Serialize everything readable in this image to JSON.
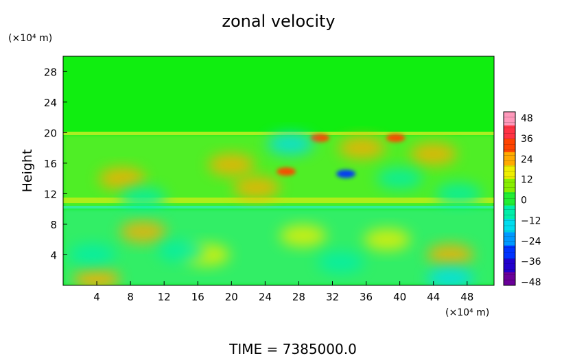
{
  "chart_data": {
    "type": "heatmap",
    "title": "zonal velocity",
    "ylabel": "Height",
    "yunit": "(×10⁴ m)",
    "xunit": "(×10⁴ m)",
    "footer": "TIME  =  7385000.0",
    "xlim": [
      0,
      51.2
    ],
    "ylim": [
      0,
      30
    ],
    "x_ticks": [
      "4",
      "8",
      "12",
      "16",
      "20",
      "24",
      "28",
      "32",
      "36",
      "40",
      "44",
      "48"
    ],
    "y_ticks": [
      "4",
      "8",
      "12",
      "16",
      "20",
      "24",
      "28"
    ],
    "colorbar": {
      "vmin": -48,
      "vmax": 48,
      "tick_labels": [
        "48",
        "36",
        "24",
        "12",
        "0",
        "−12",
        "−24",
        "−36",
        "−48"
      ],
      "colors": [
        "#6a0099",
        "#2200cc",
        "#0033ff",
        "#0099ff",
        "#00ddee",
        "#00eeaa",
        "#22ee33",
        "#88ee00",
        "#eeee00",
        "#ffaa00",
        "#ff4400",
        "#ff3344",
        "#ff99bb"
      ]
    },
    "features": [
      {
        "x": 26.5,
        "y": 14.9,
        "value": 34
      },
      {
        "x": 30.5,
        "y": 19.3,
        "value": 34
      },
      {
        "x": 39.5,
        "y": 19.3,
        "value": 33
      },
      {
        "x": 33.6,
        "y": 14.6,
        "value": -36
      },
      {
        "x": 9.5,
        "y": 7.0,
        "value": 20
      },
      {
        "x": 46.0,
        "y": 4.0,
        "value": 20
      },
      {
        "x": 4.0,
        "y": 0.8,
        "value": 22
      },
      {
        "x": 17.0,
        "y": 4.0,
        "value": 14
      },
      {
        "x": 28.5,
        "y": 6.5,
        "value": 14
      },
      {
        "x": 38.5,
        "y": 6.0,
        "value": 13
      },
      {
        "x": 23.0,
        "y": 12.8,
        "value": 26
      },
      {
        "x": 20.0,
        "y": 15.8,
        "value": 24
      },
      {
        "x": 35.5,
        "y": 18.0,
        "value": 25
      },
      {
        "x": 44.0,
        "y": 17.2,
        "value": 22
      },
      {
        "x": 7.0,
        "y": 14.0,
        "value": 20
      },
      {
        "x": 3.5,
        "y": 4.0,
        "value": -12
      },
      {
        "x": 14.0,
        "y": 4.5,
        "value": -9
      },
      {
        "x": 33.0,
        "y": 3.0,
        "value": -10
      },
      {
        "x": 46.0,
        "y": 1.0,
        "value": -14
      },
      {
        "x": 9.5,
        "y": 11.5,
        "value": -12
      },
      {
        "x": 27.0,
        "y": 18.5,
        "value": -15
      },
      {
        "x": 40.0,
        "y": 14.0,
        "value": -12
      },
      {
        "x": 47.0,
        "y": 12.0,
        "value": -10
      }
    ]
  }
}
